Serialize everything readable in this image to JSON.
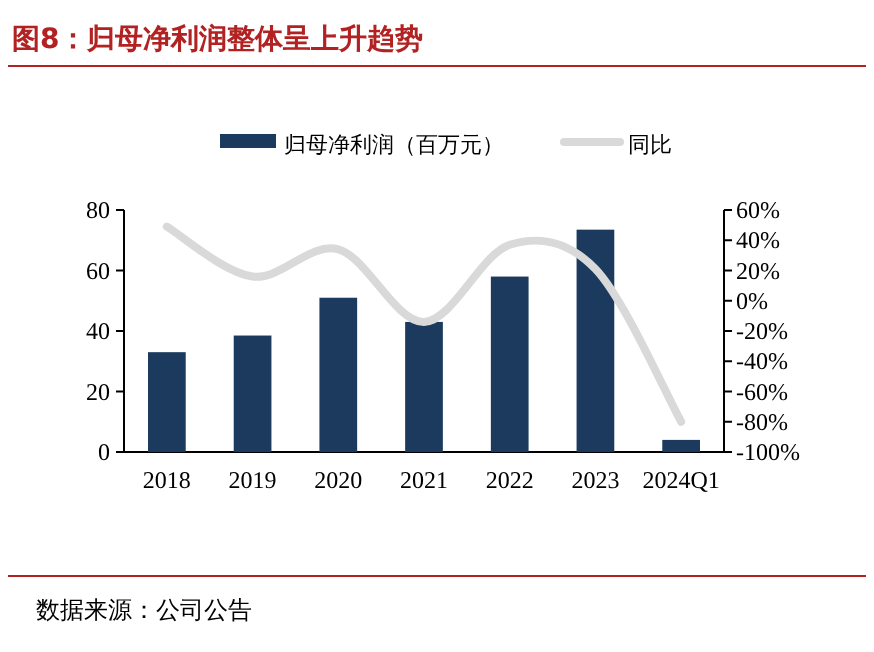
{
  "chart_data": {
    "type": "bar",
    "title": "图8：归母净利润整体呈上升趋势",
    "categories": [
      "2018",
      "2019",
      "2020",
      "2021",
      "2022",
      "2023",
      "2024Q1"
    ],
    "series": [
      {
        "name": "归母净利润（百万元）",
        "color": "#1b3a5e",
        "values": [
          33,
          38.5,
          51,
          43,
          58,
          73.5,
          4
        ]
      },
      {
        "name": "同比",
        "type": "line",
        "axis": "y2",
        "color": "#d9d9d9",
        "values": [
          49,
          16,
          34,
          -14,
          37,
          21,
          -80
        ]
      }
    ],
    "ylim": [
      0,
      80
    ],
    "yticks": [
      0,
      20,
      40,
      60,
      80
    ],
    "y2lim": [
      -100,
      60
    ],
    "y2ticks": [
      {
        "value": -100,
        "label": "-100%"
      },
      {
        "value": -80,
        "label": "-80%"
      },
      {
        "value": -60,
        "label": "-60%"
      },
      {
        "value": -40,
        "label": "-40%"
      },
      {
        "value": -20,
        "label": "-20%"
      },
      {
        "value": 0,
        "label": "0%"
      },
      {
        "value": 20,
        "label": "20%"
      },
      {
        "value": 40,
        "label": "40%"
      },
      {
        "value": 60,
        "label": "60%"
      }
    ],
    "legend": "top",
    "annotations": [
      "数据来源：公司公告"
    ]
  }
}
